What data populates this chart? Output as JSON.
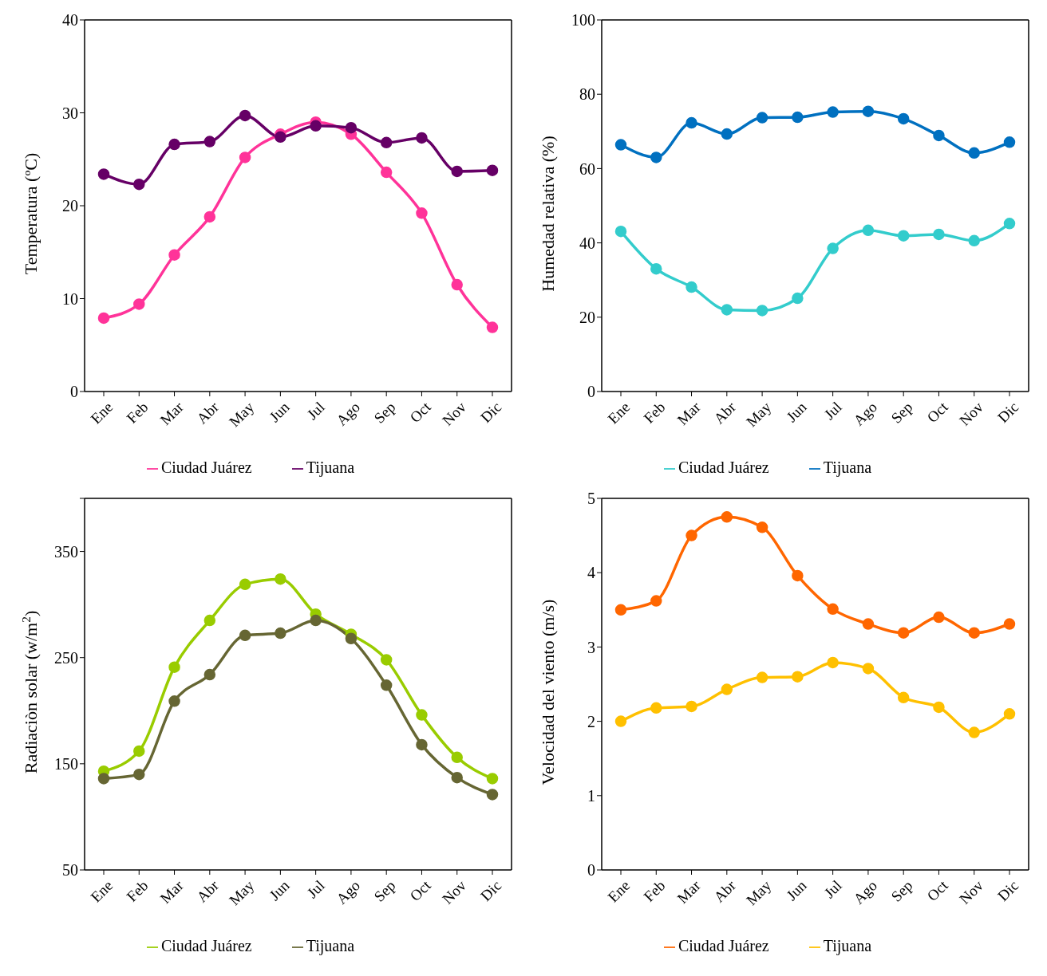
{
  "chart_data": [
    {
      "type": "line",
      "ylabel": "Temperatura (ºC)",
      "categories": [
        "Ene",
        "Feb",
        "Mar",
        "Abr",
        "May",
        "Jun",
        "Jul",
        "Ago",
        "Sep",
        "Oct",
        "Nov",
        "Dic"
      ],
      "ylim": [
        0,
        40
      ],
      "yticks": [
        0,
        10,
        20,
        30,
        40
      ],
      "grid": false,
      "legend": "bottom",
      "marker": "circle",
      "line_style": "solid",
      "series": [
        {
          "name": "Ciudad Juárez",
          "color": "#ff3399",
          "values": [
            7.9,
            9.4,
            14.7,
            18.8,
            25.2,
            27.7,
            29.0,
            27.7,
            23.6,
            19.2,
            11.5,
            6.9
          ]
        },
        {
          "name": "Tijuana",
          "color": "#660066",
          "values": [
            23.4,
            22.3,
            26.6,
            26.9,
            29.7,
            27.4,
            28.6,
            28.4,
            26.8,
            27.3,
            23.7,
            23.8
          ]
        }
      ]
    },
    {
      "type": "line",
      "ylabel": "Humedad relativa (%)",
      "categories": [
        "Ene",
        "Feb",
        "Mar",
        "Abr",
        "May",
        "Jun",
        "Jul",
        "Ago",
        "Sep",
        "Oct",
        "Nov",
        "Dic"
      ],
      "ylim": [
        0,
        100
      ],
      "yticks": [
        0,
        20,
        40,
        60,
        80,
        100
      ],
      "grid": false,
      "legend": "bottom",
      "marker": "circle",
      "line_style": "solid",
      "series": [
        {
          "name": "Ciudad Juárez",
          "color": "#33cccc",
          "values": [
            43.1,
            33.0,
            28.1,
            22.0,
            21.8,
            25.1,
            38.5,
            43.4,
            41.9,
            42.3,
            40.6,
            45.2
          ]
        },
        {
          "name": "Tijuana",
          "color": "#0070c0",
          "values": [
            66.4,
            63.0,
            72.3,
            69.3,
            73.7,
            73.8,
            75.2,
            75.4,
            73.4,
            68.9,
            64.2,
            67.1
          ]
        }
      ]
    },
    {
      "type": "line",
      "ylabel": "Radiaciòn solar  (w/m$^{2}$)",
      "categories": [
        "Ene",
        "Feb",
        "Mar",
        "Abr",
        "May",
        "Jun",
        "Jul",
        "Ago",
        "Sep",
        "Oct",
        "Nov",
        "Dic"
      ],
      "ylim": [
        50,
        400
      ],
      "yticks": [
        50,
        150,
        250,
        350,
        {
          "value": 400,
          "label": null
        }
      ],
      "grid": false,
      "legend": "bottom",
      "marker": "circle",
      "line_style": "solid",
      "series": [
        {
          "name": "Ciudad Juárez",
          "color": "#99cc00",
          "values": [
            143,
            162,
            241,
            285,
            319,
            324,
            291,
            272,
            248,
            196,
            156,
            136
          ]
        },
        {
          "name": "Tijuana",
          "color": "#666633",
          "values": [
            136,
            140,
            209,
            234,
            271,
            273,
            285,
            268,
            224,
            168,
            137,
            121
          ]
        }
      ]
    },
    {
      "type": "line",
      "ylabel": "Velocidad del viento  (m/s)",
      "categories": [
        "Ene",
        "Feb",
        "Mar",
        "Abr",
        "May",
        "Jun",
        "Jul",
        "Ago",
        "Sep",
        "Oct",
        "Nov",
        "Dic"
      ],
      "ylim": [
        0,
        5
      ],
      "yticks": [
        0,
        1,
        2,
        3,
        4,
        5
      ],
      "grid": false,
      "legend": "bottom",
      "marker": "circle",
      "line_style": "solid",
      "series": [
        {
          "name": "Ciudad Juárez",
          "color": "#ff6600",
          "values": [
            3.5,
            3.62,
            4.5,
            4.75,
            4.61,
            3.96,
            3.51,
            3.31,
            3.19,
            3.4,
            3.19,
            3.31
          ]
        },
        {
          "name": "Tijuana",
          "color": "#ffc000",
          "values": [
            2.0,
            2.18,
            2.2,
            2.43,
            2.59,
            2.6,
            2.79,
            2.71,
            2.32,
            2.19,
            1.85,
            2.1
          ]
        }
      ]
    }
  ]
}
